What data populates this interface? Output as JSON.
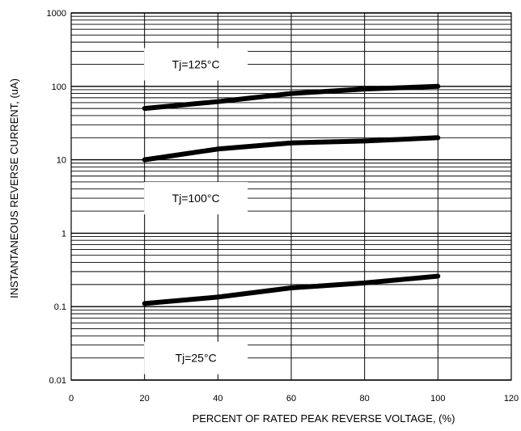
{
  "chart_data": {
    "type": "line",
    "title": "",
    "xlabel": "PERCENT OF RATED PEAK REVERSE VOLTAGE, (%)",
    "ylabel": "INSTANTANEOUS REVERSE CURRENT, (uA)",
    "xlim": [
      0,
      120
    ],
    "ylim": [
      0.01,
      1000
    ],
    "yscale": "log",
    "grid": true,
    "x_ticks": [
      "0",
      "20",
      "40",
      "60",
      "80",
      "100",
      "120"
    ],
    "y_ticks": [
      "0.01",
      "0.1",
      "1",
      "10",
      "100",
      "1000"
    ],
    "series": [
      {
        "name": "Tj=125°C",
        "x": [
          20,
          40,
          60,
          80,
          100
        ],
        "y": [
          50,
          62,
          80,
          92,
          100
        ]
      },
      {
        "name": "Tj=100°C",
        "x": [
          20,
          40,
          60,
          80,
          100
        ],
        "y": [
          10,
          14,
          17,
          18,
          20
        ]
      },
      {
        "name": "Tj=25°C",
        "x": [
          20,
          40,
          60,
          80,
          100
        ],
        "y": [
          0.11,
          0.135,
          0.18,
          0.21,
          0.26
        ]
      }
    ],
    "line_color": "#000000",
    "grid_color": "#000000"
  }
}
